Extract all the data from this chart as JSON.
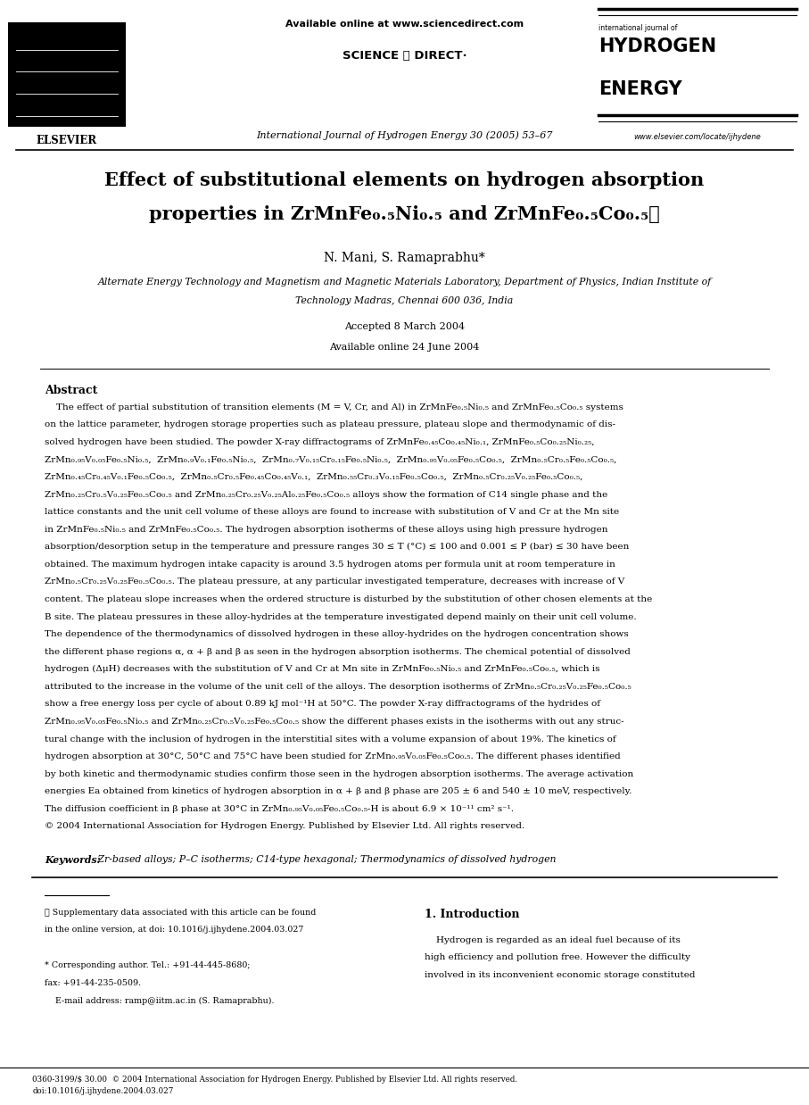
{
  "page_width": 9.07,
  "page_height": 12.38,
  "bg_color": "#ffffff",
  "available_online_text": "Available online at www.sciencedirect.com",
  "sciencedirect_logo": "SCIENCE ⓐ DIRECT·",
  "journal_line": "International Journal of Hydrogen Energy 30 (2005) 53–67",
  "journal_url": "www.elsevier.com/locate/ijhydene",
  "ije_label": "international journal of",
  "hydrogen": "HYDROGEN",
  "energy": "ENERGY",
  "elsevier": "ELSEVIER",
  "title_line1": "Effect of substitutional elements on hydrogen absorption",
  "title_line2": "properties in ZrMnFe₀.₅Ni₀.₅ and ZrMnFe₀.₅Co₀.₅☆",
  "authors": "N. Mani, S. Ramaprabhu*",
  "affil1": "Alternate Energy Technology and Magnetism and Magnetic Materials Laboratory, Department of Physics, Indian Institute of",
  "affil2": "Technology Madras, Chennai 600 036, India",
  "accepted": "Accepted 8 March 2004",
  "avail_online": "Available online 24 June 2004",
  "abstract_head": "Abstract",
  "kw_label": "Keywords:",
  "kw_text": " Zr-based alloys; P–C isotherms; C14-type hexagonal; Thermodynamics of dissolved hydrogen",
  "fn1a": "☆ Supplementary data associated with this article can be found",
  "fn1b": "in the online version, at doi: 10.1016/j.ijhydene.2004.03.027",
  "fn2a": "* Corresponding author. Tel.: +91-44-445-8680;",
  "fn2b": "fax: +91-44-235-0509.",
  "fn3": "    E-mail address: ramp@iitm.ac.in (S. Ramaprabhu).",
  "intro_head": "1. Introduction",
  "intro_l1": "    Hydrogen is regarded as an ideal fuel because of its",
  "intro_l2": "high efficiency and pollution free. However the difficulty",
  "intro_l3": "involved in its inconvenient economic storage constituted",
  "bottom1": "0360-3199/$ 30.00  © 2004 International Association for Hydrogen Energy. Published by Elsevier Ltd. All rights reserved.",
  "bottom2": "doi:10.1016/j.ijhydene.2004.03.027",
  "abstract_lines": [
    "    The effect of partial substitution of transition elements (M = V, Cr, and Al) in ZrMnFe₀.₅Ni₀.₅ and ZrMnFe₀.₅Co₀.₅ systems",
    "on the lattice parameter, hydrogen storage properties such as plateau pressure, plateau slope and thermodynamic of dis-",
    "solved hydrogen have been studied. The powder X-ray diffractograms of ZrMnFe₀.₄₅Co₀.₄₅Ni₀.₁, ZrMnFe₀.₅Co₀.₂₅Ni₀.₂₅,",
    "ZrMn₀.₉₅V₀.₀₅Fe₀.₅Ni₀.₅,  ZrMn₀.₉V₀.₁Fe₀.₅Ni₀.₅,  ZrMn₀.₇V₀.₁₅Cr₀.₁₅Fe₀.₅Ni₀.₅,  ZrMn₀.₉₅V₀.₀₅Fe₀.₅Co₀.₅,  ZrMn₀.₅Cr₀.₅Fe₀.₅Co₀.₅,",
    "ZrMn₀.₄₅Cr₀.₄₅V₀.₁Fe₀.₅Co₀.₅,  ZrMn₀.₅Cr₀.₅Fe₀.₄₅Co₀.₄₅V₀.₁,  ZrMn₀.₅₅Cr₀.₃V₀.₁₅Fe₀.₅Co₀.₅,  ZrMn₀.₅Cr₀.₂₅V₀.₂₅Fe₀.₅Co₀.₅,",
    "ZrMn₀.₂₅Cr₀.₅V₀.₂₅Fe₀.₅Co₀.₅ and ZrMn₀.₂₅Cr₀.₂₅V₀.₂₅Al₀.₂₅Fe₀.₅Co₀.₅ alloys show the formation of C14 single phase and the",
    "lattice constants and the unit cell volume of these alloys are found to increase with substitution of V and Cr at the Mn site",
    "in ZrMnFe₀.₅Ni₀.₅ and ZrMnFe₀.₅Co₀.₅. The hydrogen absorption isotherms of these alloys using high pressure hydrogen",
    "absorption/desorption setup in the temperature and pressure ranges 30 ≤ T (°C) ≤ 100 and 0.001 ≤ P (bar) ≤ 30 have been",
    "obtained. The maximum hydrogen intake capacity is around 3.5 hydrogen atoms per formula unit at room temperature in",
    "ZrMn₀.₅Cr₀.₂₅V₀.₂₅Fe₀.₅Co₀.₅. The plateau pressure, at any particular investigated temperature, decreases with increase of V",
    "content. The plateau slope increases when the ordered structure is disturbed by the substitution of other chosen elements at the",
    "B site. The plateau pressures in these alloy-hydrides at the temperature investigated depend mainly on their unit cell volume.",
    "The dependence of the thermodynamics of dissolved hydrogen in these alloy-hydrides on the hydrogen concentration shows",
    "the different phase regions α, α + β and β as seen in the hydrogen absorption isotherms. The chemical potential of dissolved",
    "hydrogen (ΔμH) decreases with the substitution of V and Cr at Mn site in ZrMnFe₀.₅Ni₀.₅ and ZrMnFe₀.₅Co₀.₅, which is",
    "attributed to the increase in the volume of the unit cell of the alloys. The desorption isotherms of ZrMn₀.₅Cr₀.₂₅V₀.₂₅Fe₀.₅Co₀.₅",
    "show a free energy loss per cycle of about 0.89 kJ mol⁻¹H at 50°C. The powder X-ray diffractograms of the hydrides of",
    "ZrMn₀.₉₅V₀.₀₅Fe₀.₅Ni₀.₅ and ZrMn₀.₂₅Cr₀.₅V₀.₂₅Fe₀.₅Co₀.₅ show the different phases exists in the isotherms with out any struc-",
    "tural change with the inclusion of hydrogen in the interstitial sites with a volume expansion of about 19%. The kinetics of",
    "hydrogen absorption at 30°C, 50°C and 75°C have been studied for ZrMn₀.₉₅V₀.₀₅Fe₀.₅Co₀.₅. The different phases identified",
    "by both kinetic and thermodynamic studies confirm those seen in the hydrogen absorption isotherms. The average activation",
    "energies Ea obtained from kinetics of hydrogen absorption in α + β and β phase are 205 ± 6 and 540 ± 10 meV, respectively.",
    "The diffusion coefficient in β phase at 30°C in ZrMn₀.₉₅V₀.₀₅Fe₀.₅Co₀.₅-H is about 6.9 × 10⁻¹¹ cm² s⁻¹.",
    "© 2004 International Association for Hydrogen Energy. Published by Elsevier Ltd. All rights reserved."
  ]
}
